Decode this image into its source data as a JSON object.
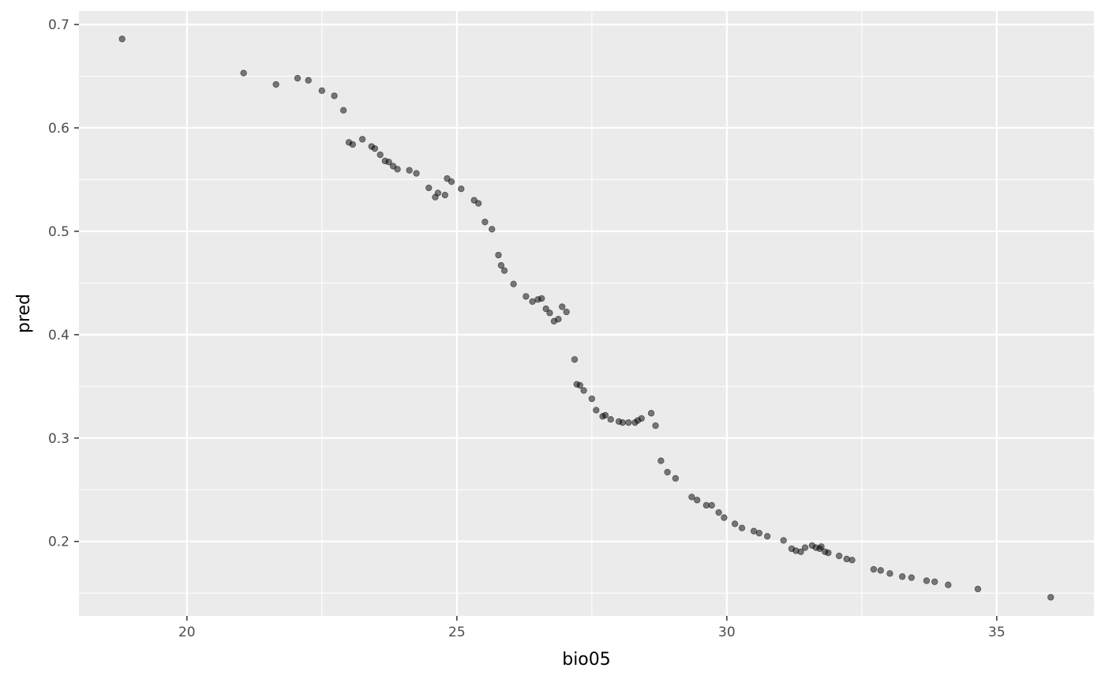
{
  "chart_data": {
    "type": "scatter",
    "title": "",
    "xlabel": "bio05",
    "ylabel": "pred",
    "xlim": [
      18.0,
      36.8
    ],
    "ylim": [
      0.128,
      0.713
    ],
    "x_ticks": [
      20,
      25,
      30,
      35
    ],
    "y_ticks": [
      0.2,
      0.3,
      0.4,
      0.5,
      0.6,
      0.7
    ],
    "x_tick_labels": [
      "20",
      "25",
      "30",
      "35"
    ],
    "y_tick_labels": [
      "0.2",
      "0.3",
      "0.4",
      "0.5",
      "0.6",
      "0.7"
    ],
    "grid": true,
    "colors": {
      "panel": "#ebebeb",
      "grid": "#ffffff",
      "point": "#000000"
    },
    "point_alpha": 0.5,
    "points": [
      [
        18.8,
        0.686
      ],
      [
        21.05,
        0.653
      ],
      [
        21.65,
        0.642
      ],
      [
        22.05,
        0.648
      ],
      [
        22.25,
        0.646
      ],
      [
        22.5,
        0.636
      ],
      [
        22.73,
        0.631
      ],
      [
        22.9,
        0.617
      ],
      [
        23.0,
        0.586
      ],
      [
        23.07,
        0.584
      ],
      [
        23.25,
        0.589
      ],
      [
        23.42,
        0.582
      ],
      [
        23.48,
        0.58
      ],
      [
        23.58,
        0.574
      ],
      [
        23.67,
        0.568
      ],
      [
        23.74,
        0.567
      ],
      [
        23.82,
        0.563
      ],
      [
        23.9,
        0.56
      ],
      [
        24.12,
        0.559
      ],
      [
        24.25,
        0.556
      ],
      [
        24.48,
        0.542
      ],
      [
        24.6,
        0.533
      ],
      [
        24.65,
        0.537
      ],
      [
        24.78,
        0.535
      ],
      [
        24.82,
        0.551
      ],
      [
        24.9,
        0.548
      ],
      [
        25.08,
        0.541
      ],
      [
        25.32,
        0.53
      ],
      [
        25.4,
        0.527
      ],
      [
        25.52,
        0.509
      ],
      [
        25.65,
        0.502
      ],
      [
        25.77,
        0.477
      ],
      [
        25.82,
        0.467
      ],
      [
        25.88,
        0.462
      ],
      [
        26.05,
        0.449
      ],
      [
        26.28,
        0.437
      ],
      [
        26.4,
        0.432
      ],
      [
        26.5,
        0.434
      ],
      [
        26.57,
        0.435
      ],
      [
        26.65,
        0.425
      ],
      [
        26.72,
        0.421
      ],
      [
        26.8,
        0.413
      ],
      [
        26.88,
        0.415
      ],
      [
        26.95,
        0.427
      ],
      [
        27.03,
        0.422
      ],
      [
        27.18,
        0.376
      ],
      [
        27.22,
        0.352
      ],
      [
        27.28,
        0.351
      ],
      [
        27.35,
        0.346
      ],
      [
        27.5,
        0.338
      ],
      [
        27.58,
        0.327
      ],
      [
        27.7,
        0.321
      ],
      [
        27.75,
        0.322
      ],
      [
        27.85,
        0.318
      ],
      [
        28.0,
        0.316
      ],
      [
        28.07,
        0.315
      ],
      [
        28.18,
        0.315
      ],
      [
        28.3,
        0.315
      ],
      [
        28.35,
        0.317
      ],
      [
        28.42,
        0.319
      ],
      [
        28.6,
        0.324
      ],
      [
        28.68,
        0.312
      ],
      [
        28.78,
        0.278
      ],
      [
        28.9,
        0.267
      ],
      [
        29.05,
        0.261
      ],
      [
        29.35,
        0.243
      ],
      [
        29.45,
        0.24
      ],
      [
        29.62,
        0.235
      ],
      [
        29.72,
        0.235
      ],
      [
        29.85,
        0.228
      ],
      [
        29.95,
        0.223
      ],
      [
        30.15,
        0.217
      ],
      [
        30.28,
        0.213
      ],
      [
        30.5,
        0.21
      ],
      [
        30.6,
        0.208
      ],
      [
        30.75,
        0.205
      ],
      [
        31.05,
        0.201
      ],
      [
        31.2,
        0.193
      ],
      [
        31.28,
        0.191
      ],
      [
        31.37,
        0.19
      ],
      [
        31.45,
        0.194
      ],
      [
        31.58,
        0.196
      ],
      [
        31.65,
        0.194
      ],
      [
        31.72,
        0.193
      ],
      [
        31.75,
        0.195
      ],
      [
        31.82,
        0.19
      ],
      [
        31.88,
        0.189
      ],
      [
        32.08,
        0.186
      ],
      [
        32.22,
        0.183
      ],
      [
        32.32,
        0.182
      ],
      [
        32.72,
        0.173
      ],
      [
        32.85,
        0.172
      ],
      [
        33.02,
        0.169
      ],
      [
        33.25,
        0.166
      ],
      [
        33.42,
        0.165
      ],
      [
        33.7,
        0.162
      ],
      [
        33.85,
        0.161
      ],
      [
        34.1,
        0.158
      ],
      [
        34.65,
        0.154
      ],
      [
        36.0,
        0.146
      ]
    ]
  }
}
